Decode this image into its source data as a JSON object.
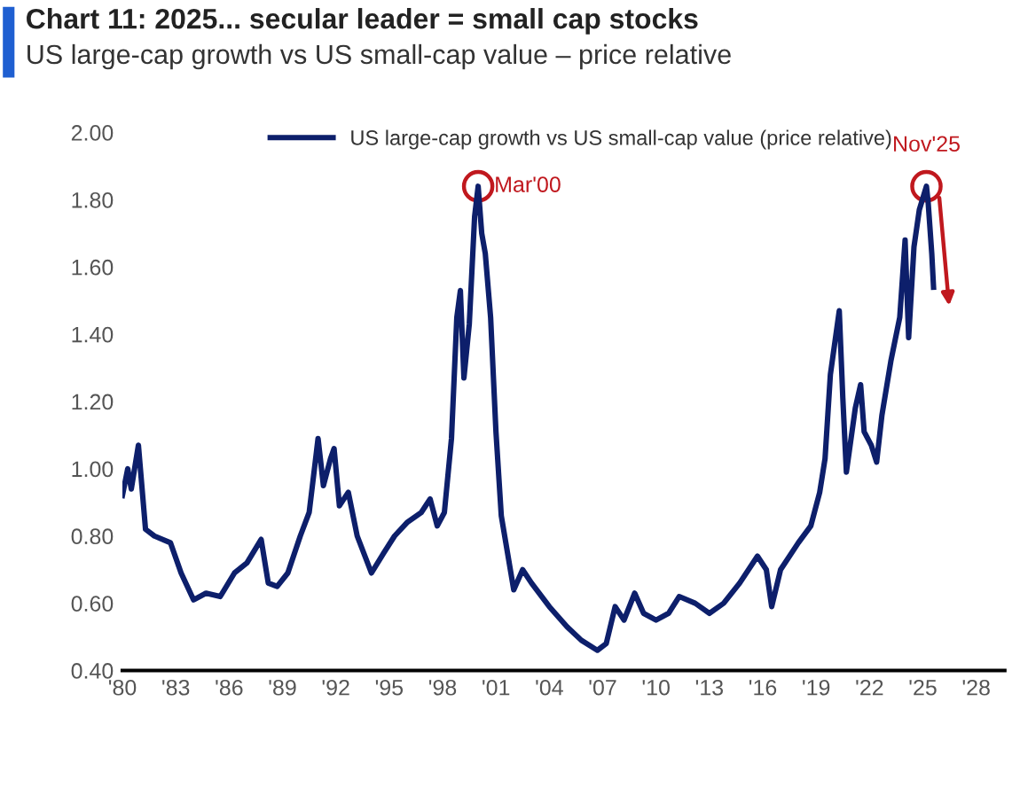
{
  "chart_data": {
    "type": "line",
    "title": "Chart 11: 2025... secular leader = small cap stocks",
    "subtitle": "US large-cap growth vs US small-cap value – price relative",
    "x": [
      1980.0,
      1980.3,
      1980.5,
      1980.9,
      1981.3,
      1981.8,
      1982.7,
      1983.3,
      1984.0,
      1984.7,
      1985.5,
      1986.3,
      1987.0,
      1987.8,
      1988.2,
      1988.7,
      1989.3,
      1990.0,
      1990.5,
      1991.0,
      1991.3,
      1991.7,
      1991.9,
      1992.2,
      1992.7,
      1993.2,
      1994.0,
      1994.7,
      1995.3,
      1996.0,
      1996.8,
      1997.3,
      1997.7,
      1998.1,
      1998.5,
      1998.8,
      1999.0,
      1999.2,
      1999.5,
      1999.8,
      2000.0,
      2000.2,
      2000.4,
      2000.7,
      2001.0,
      2001.3,
      2002.0,
      2002.5,
      2003.0,
      2004.0,
      2005.0,
      2005.8,
      2006.7,
      2007.2,
      2007.7,
      2008.2,
      2008.8,
      2009.3,
      2010.0,
      2010.7,
      2011.3,
      2012.2,
      2013.0,
      2013.8,
      2014.7,
      2015.7,
      2016.2,
      2016.5,
      2017.0,
      2018.0,
      2018.7,
      2019.2,
      2019.5,
      2019.8,
      2020.3,
      2020.5,
      2020.7,
      2021.2,
      2021.5,
      2021.7,
      2022.1,
      2022.4,
      2022.7,
      2023.2,
      2023.7,
      2024.0,
      2024.2,
      2024.5,
      2024.8,
      2025.2,
      2025.3,
      2025.5,
      2025.6
    ],
    "series": [
      {
        "name": "US large-cap growth vs US small-cap value (price relative)",
        "color": "#0d1f6b",
        "values": [
          0.92,
          1.0,
          0.94,
          1.07,
          0.82,
          0.8,
          0.78,
          0.69,
          0.61,
          0.63,
          0.62,
          0.69,
          0.72,
          0.79,
          0.66,
          0.65,
          0.69,
          0.8,
          0.87,
          1.09,
          0.95,
          1.03,
          1.06,
          0.89,
          0.93,
          0.8,
          0.69,
          0.75,
          0.8,
          0.84,
          0.87,
          0.91,
          0.83,
          0.87,
          1.09,
          1.45,
          1.53,
          1.27,
          1.43,
          1.75,
          1.84,
          1.7,
          1.64,
          1.45,
          1.11,
          0.86,
          0.64,
          0.7,
          0.66,
          0.59,
          0.53,
          0.49,
          0.46,
          0.48,
          0.59,
          0.55,
          0.63,
          0.57,
          0.55,
          0.57,
          0.62,
          0.6,
          0.57,
          0.6,
          0.66,
          0.74,
          0.7,
          0.59,
          0.7,
          0.78,
          0.83,
          0.93,
          1.03,
          1.28,
          1.47,
          1.21,
          0.99,
          1.18,
          1.25,
          1.11,
          1.07,
          1.02,
          1.16,
          1.32,
          1.45,
          1.68,
          1.39,
          1.66,
          1.77,
          1.84,
          1.79,
          1.64,
          1.54
        ]
      }
    ],
    "xlim": [
      1980,
      2029.6
    ],
    "xticks": [
      {
        "value": 1980,
        "label": "'80"
      },
      {
        "value": 1983,
        "label": "'83"
      },
      {
        "value": 1986,
        "label": "'86"
      },
      {
        "value": 1989,
        "label": "'89"
      },
      {
        "value": 1992,
        "label": "'92"
      },
      {
        "value": 1995,
        "label": "'95"
      },
      {
        "value": 1998,
        "label": "'98"
      },
      {
        "value": 2001,
        "label": "'01"
      },
      {
        "value": 2004,
        "label": "'04"
      },
      {
        "value": 2007,
        "label": "'07"
      },
      {
        "value": 2010,
        "label": "'10"
      },
      {
        "value": 2013,
        "label": "'13"
      },
      {
        "value": 2016,
        "label": "'16"
      },
      {
        "value": 2019,
        "label": "'19"
      },
      {
        "value": 2022,
        "label": "'22"
      },
      {
        "value": 2025,
        "label": "'25"
      },
      {
        "value": 2028,
        "label": "'28"
      }
    ],
    "ylim": [
      0.4,
      2.0
    ],
    "yticks": [
      {
        "value": 0.4,
        "label": "0.40"
      },
      {
        "value": 0.6,
        "label": "0.60"
      },
      {
        "value": 0.8,
        "label": "0.80"
      },
      {
        "value": 1.0,
        "label": "1.00"
      },
      {
        "value": 1.2,
        "label": "1.20"
      },
      {
        "value": 1.4,
        "label": "1.40"
      },
      {
        "value": 1.6,
        "label": "1.60"
      },
      {
        "value": 1.8,
        "label": "1.80"
      },
      {
        "value": 2.0,
        "label": "2.00"
      }
    ],
    "annotations": [
      {
        "text": "Mar'00",
        "x": 2000.0,
        "y": 1.84
      },
      {
        "text": "Nov'25",
        "x": 2025.2,
        "y": 1.84
      }
    ],
    "grid": false,
    "legend": "top",
    "line_style": "solid",
    "marker": "none"
  }
}
